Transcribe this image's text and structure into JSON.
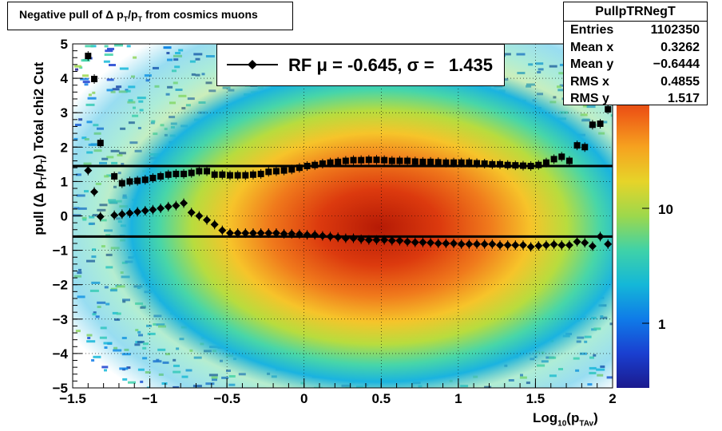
{
  "chart_data": {
    "type": "heatmap",
    "title": "Negative pull of Δ p_T/p_T from cosmics muons",
    "xlabel": "Log10(pTAv)",
    "ylabel": "pull (Δ pT/pT)  Total chi2 Cut",
    "xlim": [
      -1.5,
      2.0
    ],
    "ylim": [
      -5,
      5
    ],
    "z_log_scale": true,
    "z_tick_labels": [
      "1",
      "10"
    ],
    "grid": true,
    "x_ticks": [
      "−1.5",
      "−1",
      "−0.5",
      "0",
      "0.5",
      "1",
      "1.5",
      "2"
    ],
    "y_ticks": [
      "−5",
      "−4",
      "−3",
      "−2",
      "−1",
      "0",
      "1",
      "2",
      "3",
      "4",
      "5"
    ],
    "fit_lines": [
      {
        "name": "upper",
        "y": 1.45
      },
      {
        "name": "lower",
        "y": -0.6
      }
    ],
    "series": [
      {
        "name": "squares",
        "marker": "square",
        "x": [
          -1.4,
          -1.36,
          -1.32,
          -1.23,
          -1.18,
          -1.13,
          -1.08,
          -1.03,
          -0.98,
          -0.93,
          -0.88,
          -0.83,
          -0.78,
          -0.73,
          -0.68,
          -0.63,
          -0.58,
          -0.53,
          -0.48,
          -0.43,
          -0.38,
          -0.33,
          -0.28,
          -0.23,
          -0.18,
          -0.13,
          -0.08,
          -0.03,
          0.02,
          0.07,
          0.12,
          0.17,
          0.22,
          0.27,
          0.32,
          0.37,
          0.42,
          0.47,
          0.52,
          0.57,
          0.62,
          0.67,
          0.72,
          0.77,
          0.82,
          0.87,
          0.92,
          0.97,
          1.02,
          1.07,
          1.12,
          1.17,
          1.22,
          1.27,
          1.32,
          1.37,
          1.42,
          1.47,
          1.52,
          1.57,
          1.62,
          1.67,
          1.72,
          1.77,
          1.82,
          1.87,
          1.92,
          1.97
        ],
        "y": [
          4.65,
          3.98,
          2.12,
          1.15,
          0.95,
          1.0,
          1.02,
          1.05,
          1.1,
          1.15,
          1.2,
          1.22,
          1.22,
          1.25,
          1.3,
          1.3,
          1.2,
          1.2,
          1.18,
          1.18,
          1.18,
          1.2,
          1.22,
          1.28,
          1.3,
          1.32,
          1.35,
          1.4,
          1.45,
          1.48,
          1.52,
          1.55,
          1.57,
          1.6,
          1.62,
          1.62,
          1.63,
          1.63,
          1.62,
          1.6,
          1.6,
          1.6,
          1.58,
          1.57,
          1.57,
          1.56,
          1.55,
          1.55,
          1.55,
          1.55,
          1.53,
          1.52,
          1.5,
          1.5,
          1.48,
          1.47,
          1.46,
          1.45,
          1.48,
          1.55,
          1.65,
          1.72,
          1.6,
          2.05,
          2.0,
          2.65,
          2.68,
          3.1
        ]
      },
      {
        "name": "diamonds",
        "marker": "diamond",
        "x": [
          -1.4,
          -1.36,
          -1.32,
          -1.23,
          -1.18,
          -1.13,
          -1.08,
          -1.03,
          -0.98,
          -0.93,
          -0.88,
          -0.83,
          -0.78,
          -0.73,
          -0.68,
          -0.63,
          -0.58,
          -0.53,
          -0.48,
          -0.43,
          -0.38,
          -0.33,
          -0.28,
          -0.23,
          -0.18,
          -0.13,
          -0.08,
          -0.03,
          0.02,
          0.07,
          0.12,
          0.17,
          0.22,
          0.27,
          0.32,
          0.37,
          0.42,
          0.47,
          0.52,
          0.57,
          0.62,
          0.67,
          0.72,
          0.77,
          0.82,
          0.87,
          0.92,
          0.97,
          1.02,
          1.07,
          1.12,
          1.17,
          1.22,
          1.27,
          1.32,
          1.37,
          1.42,
          1.47,
          1.52,
          1.57,
          1.62,
          1.67,
          1.72,
          1.77,
          1.82,
          1.87,
          1.92,
          1.97
        ],
        "y": [
          1.32,
          0.7,
          -0.02,
          0.02,
          0.05,
          0.08,
          0.12,
          0.15,
          0.18,
          0.22,
          0.27,
          0.3,
          0.37,
          0.1,
          0.0,
          -0.12,
          -0.25,
          -0.42,
          -0.5,
          -0.5,
          -0.5,
          -0.5,
          -0.5,
          -0.5,
          -0.5,
          -0.52,
          -0.52,
          -0.53,
          -0.55,
          -0.55,
          -0.58,
          -0.6,
          -0.62,
          -0.65,
          -0.65,
          -0.68,
          -0.7,
          -0.7,
          -0.7,
          -0.72,
          -0.72,
          -0.75,
          -0.77,
          -0.77,
          -0.78,
          -0.8,
          -0.8,
          -0.8,
          -0.82,
          -0.82,
          -0.82,
          -0.82,
          -0.82,
          -0.85,
          -0.85,
          -0.85,
          -0.85,
          -0.9,
          -0.87,
          -0.85,
          -0.83,
          -0.85,
          -0.85,
          -0.75,
          -0.78,
          -0.88,
          -0.6,
          -0.82
        ]
      }
    ]
  },
  "title_box": {
    "prefix": "Negative pull of ",
    "delta": "Δ",
    "p1": " p",
    "sub1": "T",
    "slash": "/p",
    "sub2": "T",
    "suffix": " from cosmics muons"
  },
  "legend": {
    "text": "RF μ = -0.645, σ =   1.435"
  },
  "stats": {
    "title": "PullpTRNegT",
    "rows": [
      {
        "key": "Entries",
        "value": "1102350"
      },
      {
        "key": "Mean x",
        "value": "0.3262"
      },
      {
        "key": "Mean y",
        "value": "−0.6444"
      },
      {
        "key": "RMS x",
        "value": "0.4855"
      },
      {
        "key": "RMS y",
        "value": "1.517"
      }
    ]
  },
  "axes": {
    "x_title_main": "Log",
    "x_title_sub1": "10",
    "x_title_mid": "(p",
    "x_title_sub2": "TAv",
    "x_title_end": ")",
    "y_title_a": "pull (Δ p",
    "y_title_sub1": "T",
    "y_title_b": "/p",
    "y_title_sub2": "T",
    "y_title_c": ")  Total chi2 Cut"
  },
  "colors": {
    "frame": "#000000",
    "grid": "#000000",
    "palette_low": "#1a1a8a",
    "palette_high": "#8a0000"
  }
}
